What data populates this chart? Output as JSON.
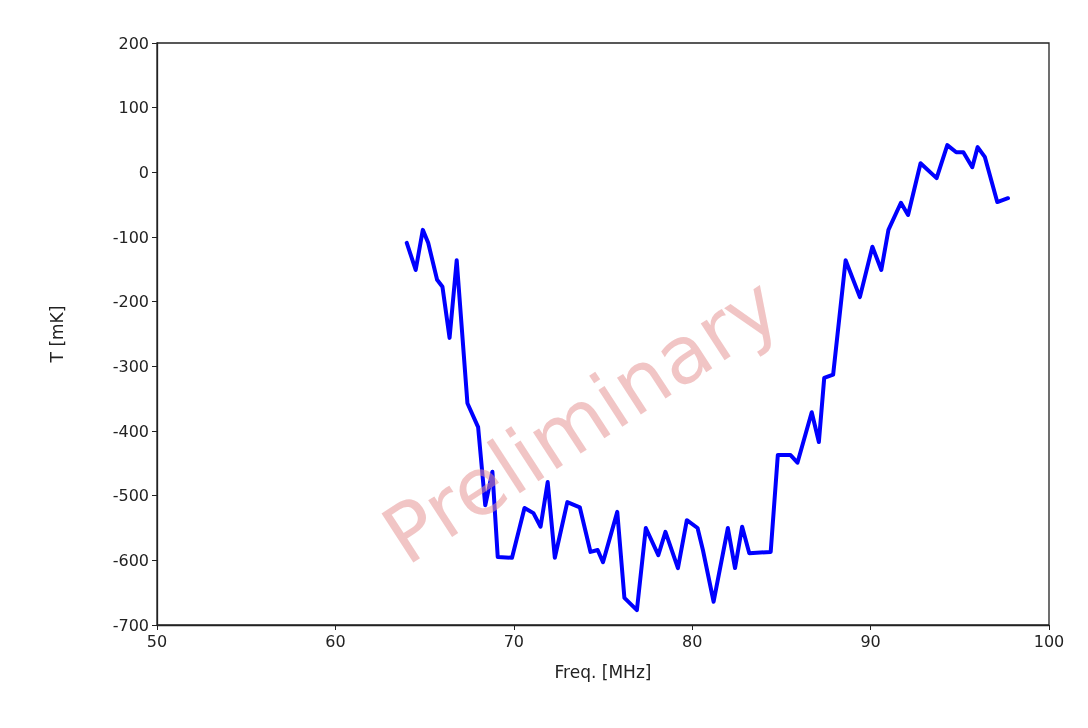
{
  "chart_data": {
    "type": "line",
    "xlabel": "Freq. [MHz]",
    "ylabel": "T [mK]",
    "annotations": [
      "Preliminary"
    ],
    "xlim": [
      50,
      100
    ],
    "xticks": [
      50,
      60,
      70,
      80,
      90,
      100
    ],
    "ylim": [
      -700,
      200
    ],
    "yticks": [
      -700,
      -600,
      -500,
      -400,
      -300,
      -200,
      -100,
      0,
      100,
      200
    ],
    "grid": false,
    "marker": "none",
    "line_style": "solid",
    "series": [
      {
        "color": "#0000ff",
        "x": [
          64.0,
          64.5,
          64.9,
          65.2,
          65.7,
          66.0,
          66.4,
          66.8,
          67.4,
          68.0,
          68.4,
          68.8,
          69.1,
          69.9,
          70.6,
          71.1,
          71.5,
          71.9,
          72.3,
          73.0,
          73.7,
          74.3,
          74.7,
          75.0,
          75.8,
          76.2,
          76.9,
          77.4,
          78.1,
          78.5,
          79.2,
          79.7,
          80.3,
          80.6,
          81.2,
          82.0,
          82.4,
          82.8,
          83.2,
          84.4,
          84.8,
          85.5,
          85.9,
          86.7,
          87.1,
          87.4,
          87.9,
          88.6,
          89.4,
          90.1,
          90.6,
          91.0,
          91.7,
          92.1,
          92.8,
          93.7,
          94.3,
          94.8,
          95.2,
          95.7,
          96.0,
          96.4,
          97.1,
          97.7
        ],
        "values": [
          -109,
          -151,
          -89,
          -109,
          -166,
          -177,
          -256,
          -136,
          -357,
          -394,
          -515,
          -463,
          -595,
          -596,
          -519,
          -527,
          -548,
          -479,
          -596,
          -510,
          -518,
          -587,
          -584,
          -603,
          -525,
          -658,
          -677,
          -550,
          -592,
          -556,
          -612,
          -538,
          -550,
          -584,
          -664,
          -550,
          -612,
          -548,
          -589,
          -587,
          -437,
          -437,
          -449,
          -371,
          -417,
          -318,
          -313,
          -136,
          -193,
          -115,
          -151,
          -89,
          -47,
          -66,
          14,
          -9,
          42,
          31,
          31,
          8,
          39,
          24,
          -46,
          -40
        ]
      }
    ]
  }
}
